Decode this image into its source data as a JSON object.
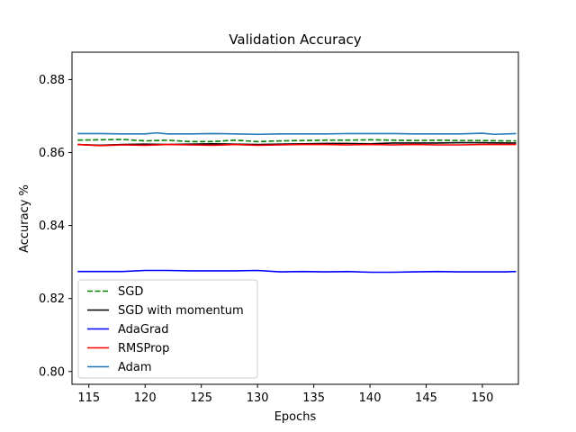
{
  "chart_data": {
    "type": "line",
    "title": "Validation Accuracy",
    "xlabel": "Epochs",
    "ylabel": "Accuracy %",
    "xlim": [
      113.5,
      153.2
    ],
    "ylim": [
      0.7965,
      0.8875
    ],
    "xticks": [
      115,
      120,
      125,
      130,
      135,
      140,
      145,
      150
    ],
    "yticks": [
      0.8,
      0.82,
      0.84,
      0.86,
      0.88
    ],
    "ytick_labels": [
      "0.80",
      "0.82",
      "0.84",
      "0.86",
      "0.88"
    ],
    "grid": false,
    "legend_position": "lower-left",
    "series": [
      {
        "name": "SGD",
        "color": "#008000",
        "dash": "dashed",
        "x": [
          114,
          116,
          118,
          120,
          122,
          124,
          126,
          128,
          130,
          132,
          134,
          136,
          138,
          140,
          142,
          144,
          146,
          148,
          150,
          152,
          153
        ],
        "y": [
          0.8634,
          0.8635,
          0.8636,
          0.8632,
          0.8634,
          0.863,
          0.863,
          0.8634,
          0.863,
          0.8632,
          0.8633,
          0.8634,
          0.8634,
          0.8635,
          0.8634,
          0.8633,
          0.8634,
          0.8633,
          0.8633,
          0.8632,
          0.8632
        ]
      },
      {
        "name": "SGD with momentum",
        "color": "#000000",
        "dash": "solid",
        "x": [
          114,
          116,
          118,
          120,
          122,
          124,
          126,
          128,
          130,
          132,
          134,
          136,
          138,
          140,
          142,
          144,
          146,
          148,
          150,
          152,
          153
        ],
        "y": [
          0.8622,
          0.862,
          0.8622,
          0.8623,
          0.8622,
          0.8623,
          0.8624,
          0.8623,
          0.8622,
          0.8623,
          0.8624,
          0.8625,
          0.8625,
          0.8624,
          0.8626,
          0.8626,
          0.8626,
          0.8627,
          0.8627,
          0.8626,
          0.8626
        ]
      },
      {
        "name": "AdaGrad",
        "color": "#0000ff",
        "dash": "solid",
        "x": [
          114,
          116,
          118,
          120,
          122,
          124,
          126,
          128,
          130,
          132,
          134,
          136,
          138,
          140,
          142,
          144,
          146,
          148,
          150,
          152,
          153
        ],
        "y": [
          0.8274,
          0.8274,
          0.8274,
          0.8277,
          0.8277,
          0.8276,
          0.8276,
          0.8276,
          0.8277,
          0.8273,
          0.8274,
          0.8273,
          0.8274,
          0.8272,
          0.8272,
          0.8273,
          0.8274,
          0.8273,
          0.8273,
          0.8273,
          0.8274
        ]
      },
      {
        "name": "RMSProp",
        "color": "#ff0000",
        "dash": "solid",
        "x": [
          114,
          116,
          118,
          120,
          122,
          124,
          126,
          128,
          130,
          132,
          134,
          136,
          138,
          140,
          142,
          144,
          146,
          148,
          150,
          152,
          153
        ],
        "y": [
          0.8622,
          0.8619,
          0.8621,
          0.862,
          0.8622,
          0.8621,
          0.862,
          0.8622,
          0.862,
          0.8621,
          0.8622,
          0.8622,
          0.8621,
          0.8622,
          0.8621,
          0.8622,
          0.8621,
          0.8621,
          0.8622,
          0.8622,
          0.8622
        ]
      },
      {
        "name": "Adam",
        "color": "#1f77b4",
        "dash": "solid",
        "x": [
          114,
          116,
          118,
          120,
          121,
          122,
          124,
          126,
          128,
          130,
          132,
          134,
          136,
          138,
          140,
          142,
          144,
          146,
          148,
          150,
          151,
          153
        ],
        "y": [
          0.8652,
          0.8652,
          0.8651,
          0.8651,
          0.8654,
          0.8651,
          0.8651,
          0.8652,
          0.8651,
          0.865,
          0.8651,
          0.8651,
          0.8651,
          0.8652,
          0.8652,
          0.8652,
          0.8651,
          0.8651,
          0.8651,
          0.8653,
          0.865,
          0.8652
        ]
      }
    ]
  }
}
